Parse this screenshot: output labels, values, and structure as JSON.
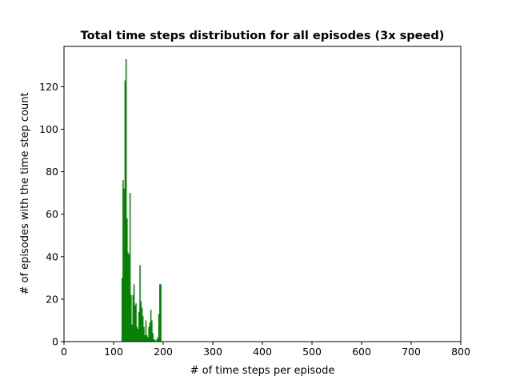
{
  "chart_data": {
    "type": "bar",
    "title": "Total time steps distribution for all episodes (3x speed)",
    "xlabel": "# of time steps per episode",
    "ylabel": "# of episodes with the time step count",
    "xlim": [
      0,
      800
    ],
    "ylim": [
      0,
      139
    ],
    "xticks": [
      "0",
      "100",
      "200",
      "300",
      "400",
      "500",
      "600",
      "700",
      "800"
    ],
    "yticks": [
      "0",
      "20",
      "40",
      "60",
      "80",
      "100",
      "120"
    ],
    "bar_color": "#008000",
    "bin_width": 1,
    "grid": false,
    "legend": "none",
    "x": [
      116,
      117,
      118,
      119,
      120,
      121,
      122,
      123,
      124,
      125,
      126,
      127,
      128,
      129,
      130,
      131,
      132,
      133,
      134,
      135,
      136,
      137,
      138,
      139,
      140,
      141,
      142,
      143,
      144,
      145,
      146,
      147,
      148,
      149,
      150,
      151,
      152,
      153,
      154,
      155,
      156,
      157,
      158,
      159,
      160,
      161,
      162,
      163,
      164,
      165,
      166,
      167,
      168,
      169,
      170,
      171,
      172,
      173,
      174,
      175,
      176,
      177,
      178,
      179,
      180,
      181,
      182,
      183,
      184,
      185,
      186,
      187,
      188,
      189,
      190,
      191,
      192,
      193,
      194,
      195,
      196,
      197,
      198,
      199,
      200,
      201,
      202,
      203,
      204,
      205,
      206,
      207,
      208,
      209,
      210,
      211,
      212,
      213,
      214,
      215,
      216,
      217,
      218,
      219,
      220,
      221,
      222,
      223,
      224
    ],
    "values": [
      30,
      30,
      76,
      76,
      72,
      72,
      123,
      123,
      133,
      133,
      58,
      58,
      42,
      42,
      41,
      41,
      70,
      70,
      22,
      22,
      8,
      8,
      22,
      22,
      27,
      27,
      17,
      17,
      18,
      18,
      7,
      7,
      6,
      6,
      14,
      14,
      36,
      36,
      19,
      19,
      16,
      16,
      12,
      12,
      7,
      7,
      3,
      3,
      10,
      10,
      3,
      3,
      2,
      2,
      7,
      7,
      9,
      9,
      15,
      15,
      10,
      10,
      4,
      4,
      1,
      1,
      1,
      1,
      0,
      0,
      1,
      1,
      2,
      2,
      13,
      13,
      27,
      27,
      27,
      27,
      0,
      0,
      0,
      0,
      0,
      0,
      0,
      0,
      0,
      0,
      0,
      0,
      0,
      0,
      0,
      0,
      0,
      0,
      0,
      0,
      0,
      0,
      0,
      0,
      0,
      0,
      0,
      0,
      0
    ]
  }
}
